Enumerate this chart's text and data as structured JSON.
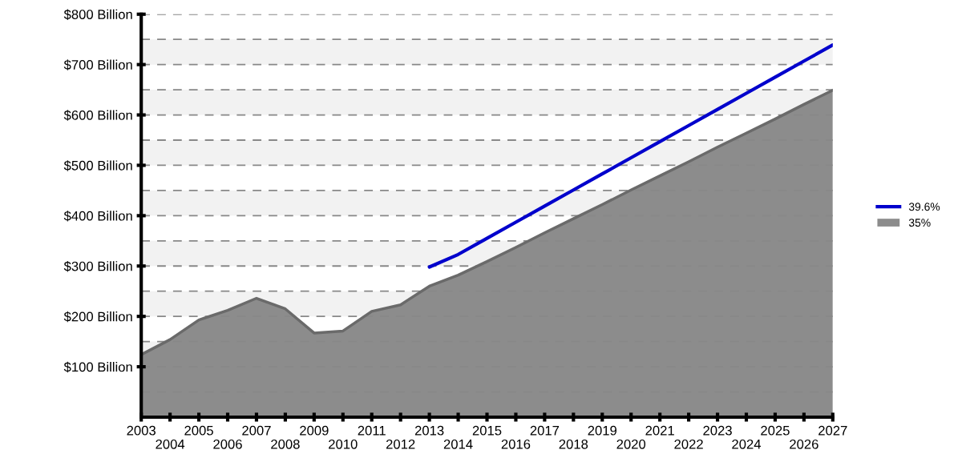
{
  "chart_data": {
    "type": "area",
    "x": [
      2003,
      2004,
      2005,
      2006,
      2007,
      2008,
      2009,
      2010,
      2011,
      2012,
      2013,
      2014,
      2015,
      2016,
      2017,
      2018,
      2019,
      2020,
      2021,
      2022,
      2023,
      2024,
      2025,
      2026,
      2027
    ],
    "series": [
      {
        "name": "35%",
        "type": "area",
        "color": "#8c8c8c",
        "values": [
          124,
          154,
          193,
          212,
          236,
          215,
          167,
          171,
          210,
          223,
          260,
          282,
          309,
          337,
          366,
          394,
          422,
          451,
          479,
          507,
          536,
          564,
          592,
          621,
          649
        ]
      },
      {
        "name": "39.6%",
        "type": "line",
        "color": "#0000cc",
        "x": [
          2013,
          2014,
          2015,
          2016,
          2017,
          2018,
          2019,
          2020,
          2021,
          2022,
          2023,
          2024,
          2025,
          2026,
          2027
        ],
        "values": [
          298,
          323,
          355,
          387,
          419,
          451,
          483,
          515,
          547,
          579,
          611,
          643,
          675,
          707,
          739
        ]
      }
    ],
    "xlim": [
      2003,
      2027
    ],
    "xticks": [
      2003,
      {
        "value": 2004,
        "label": null
      },
      2005,
      {
        "value": 2006,
        "label": null
      },
      2007,
      {
        "value": 2008,
        "label": null
      },
      2009,
      {
        "value": 2010,
        "label": null
      },
      2011,
      {
        "value": 2012,
        "label": null
      },
      2013,
      {
        "value": 2014,
        "label": null
      },
      2015,
      {
        "value": 2016,
        "label": null
      },
      2017,
      {
        "value": 2018,
        "label": null
      },
      2019,
      {
        "value": 2020,
        "label": null
      },
      2021,
      {
        "value": 2022,
        "label": null
      },
      2023,
      {
        "value": 2024,
        "label": null
      },
      2025,
      {
        "value": 2026,
        "label": null
      },
      2027
    ],
    "x2lim": [
      2003,
      2027
    ],
    "x2ticks": [
      2004,
      2006,
      2008,
      2010,
      2012,
      2014,
      2016,
      2018,
      2020,
      2022,
      2024,
      2026
    ],
    "ylim": [
      0,
      800
    ],
    "yticks": [
      {
        "value": 0,
        "label": null
      },
      {
        "value": 50,
        "label": null
      },
      {
        "value": 100,
        "label": "$100 Billion"
      },
      {
        "value": 150,
        "label": null
      },
      {
        "value": 200,
        "label": "$200 Billion"
      },
      {
        "value": 250,
        "label": null
      },
      {
        "value": 300,
        "label": "$300 Billion"
      },
      {
        "value": 350,
        "label": null
      },
      {
        "value": 400,
        "label": "$400 Billion"
      },
      {
        "value": 450,
        "label": null
      },
      {
        "value": 500,
        "label": "$500 Billion"
      },
      {
        "value": 550,
        "label": null
      },
      {
        "value": 600,
        "label": "$600 Billion"
      },
      {
        "value": 650,
        "label": null
      },
      {
        "value": 700,
        "label": "$700 Billion"
      },
      {
        "value": 750,
        "label": null
      },
      {
        "value": 800,
        "label": "$800 Billion"
      }
    ],
    "bands": [
      {
        "axis": "y",
        "from": 100,
        "to": 150,
        "color": "#f2f2f2"
      },
      {
        "axis": "y",
        "from": 200,
        "to": 250,
        "color": "#f2f2f2"
      },
      {
        "axis": "y",
        "from": 300,
        "to": 350,
        "color": "#f2f2f2"
      },
      {
        "axis": "y",
        "from": 400,
        "to": 450,
        "color": "#f2f2f2"
      },
      {
        "axis": "y",
        "from": 500,
        "to": 550,
        "color": "#f2f2f2"
      },
      {
        "axis": "y",
        "from": 600,
        "to": 650,
        "color": "#f2f2f2"
      },
      {
        "axis": "y",
        "from": 700,
        "to": 750,
        "color": "#f2f2f2"
      }
    ],
    "grid": "y",
    "legend": "right",
    "line_style": "solid",
    "marker": "none"
  }
}
